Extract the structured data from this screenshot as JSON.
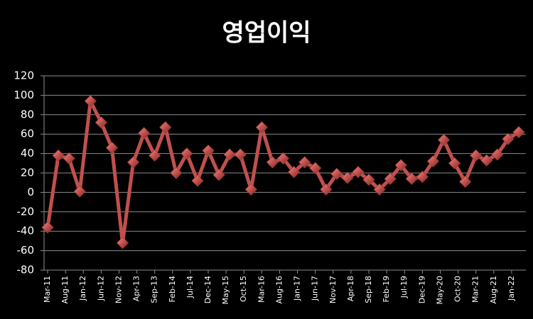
{
  "chart_data": {
    "type": "line",
    "title": "영업이익",
    "x": [
      "2011-03",
      "2011-06",
      "2011-09",
      "2011-12",
      "2012-03",
      "2012-06",
      "2012-09",
      "2012-12",
      "2013-03",
      "2013-06",
      "2013-09",
      "2013-12",
      "2014-03",
      "2014-06",
      "2014-09",
      "2014-12",
      "2015-03",
      "2015-06",
      "2015-09",
      "2015-12",
      "2016-03",
      "2016-06",
      "2016-09",
      "2016-12",
      "2017-03",
      "2017-06",
      "2017-09",
      "2017-12",
      "2018-03",
      "2018-06",
      "2018-09",
      "2018-12",
      "2019-03",
      "2019-06",
      "2019-09",
      "2019-12",
      "2020-03",
      "2020-06",
      "2020-09",
      "2020-12",
      "2021-03",
      "2021-06",
      "2021-09",
      "2021-12",
      "2022-03"
    ],
    "series": [
      {
        "name": "영업이익",
        "color": "#c0504d",
        "values": [
          -36,
          38,
          35,
          1,
          94,
          72,
          46,
          -52,
          31,
          61,
          38,
          67,
          20,
          40,
          12,
          43,
          18,
          39,
          39,
          3,
          67,
          31,
          35,
          21,
          31,
          25,
          3,
          19,
          15,
          21,
          13,
          3,
          14,
          28,
          14,
          16,
          32,
          54,
          30,
          11,
          38,
          33,
          39,
          55,
          62
        ]
      }
    ],
    "xlim": [
      "2011-02",
      "2022-05"
    ],
    "xticks": [
      {
        "value": "2011-03",
        "label": "Mar-11"
      },
      {
        "value": "2011-08",
        "label": "Aug-11"
      },
      {
        "value": "2012-01",
        "label": "Jan-12"
      },
      {
        "value": "2012-06",
        "label": "Jun-12"
      },
      {
        "value": "2012-11",
        "label": "Nov-12"
      },
      {
        "value": "2013-04",
        "label": "Apr-13"
      },
      {
        "value": "2013-09",
        "label": "Sep-13"
      },
      {
        "value": "2014-02",
        "label": "Feb-14"
      },
      {
        "value": "2014-07",
        "label": "Jul-14"
      },
      {
        "value": "2014-12",
        "label": "Dec-14"
      },
      {
        "value": "2015-05",
        "label": "May-15"
      },
      {
        "value": "2015-10",
        "label": "Oct-15"
      },
      {
        "value": "2016-03",
        "label": "Mar-16"
      },
      {
        "value": "2016-08",
        "label": "Aug-16"
      },
      {
        "value": "2017-01",
        "label": "Jan-17"
      },
      {
        "value": "2017-06",
        "label": "Jun-17"
      },
      {
        "value": "2017-11",
        "label": "Nov-17"
      },
      {
        "value": "2018-04",
        "label": "Apr-18"
      },
      {
        "value": "2018-09",
        "label": "Sep-18"
      },
      {
        "value": "2019-02",
        "label": "Feb-19"
      },
      {
        "value": "2019-07",
        "label": "Jul-19"
      },
      {
        "value": "2019-12",
        "label": "Dec-19"
      },
      {
        "value": "2020-05",
        "label": "May-20"
      },
      {
        "value": "2020-10",
        "label": "Oct-20"
      },
      {
        "value": "2021-03",
        "label": "Mar-21"
      },
      {
        "value": "2021-08",
        "label": "Aug-21"
      },
      {
        "value": "2022-01",
        "label": "Jan-22"
      }
    ],
    "ylim": [
      -80,
      120
    ],
    "yticks": [
      -80,
      -60,
      -40,
      -20,
      0,
      20,
      40,
      60,
      80,
      100,
      120
    ],
    "grid": true
  }
}
